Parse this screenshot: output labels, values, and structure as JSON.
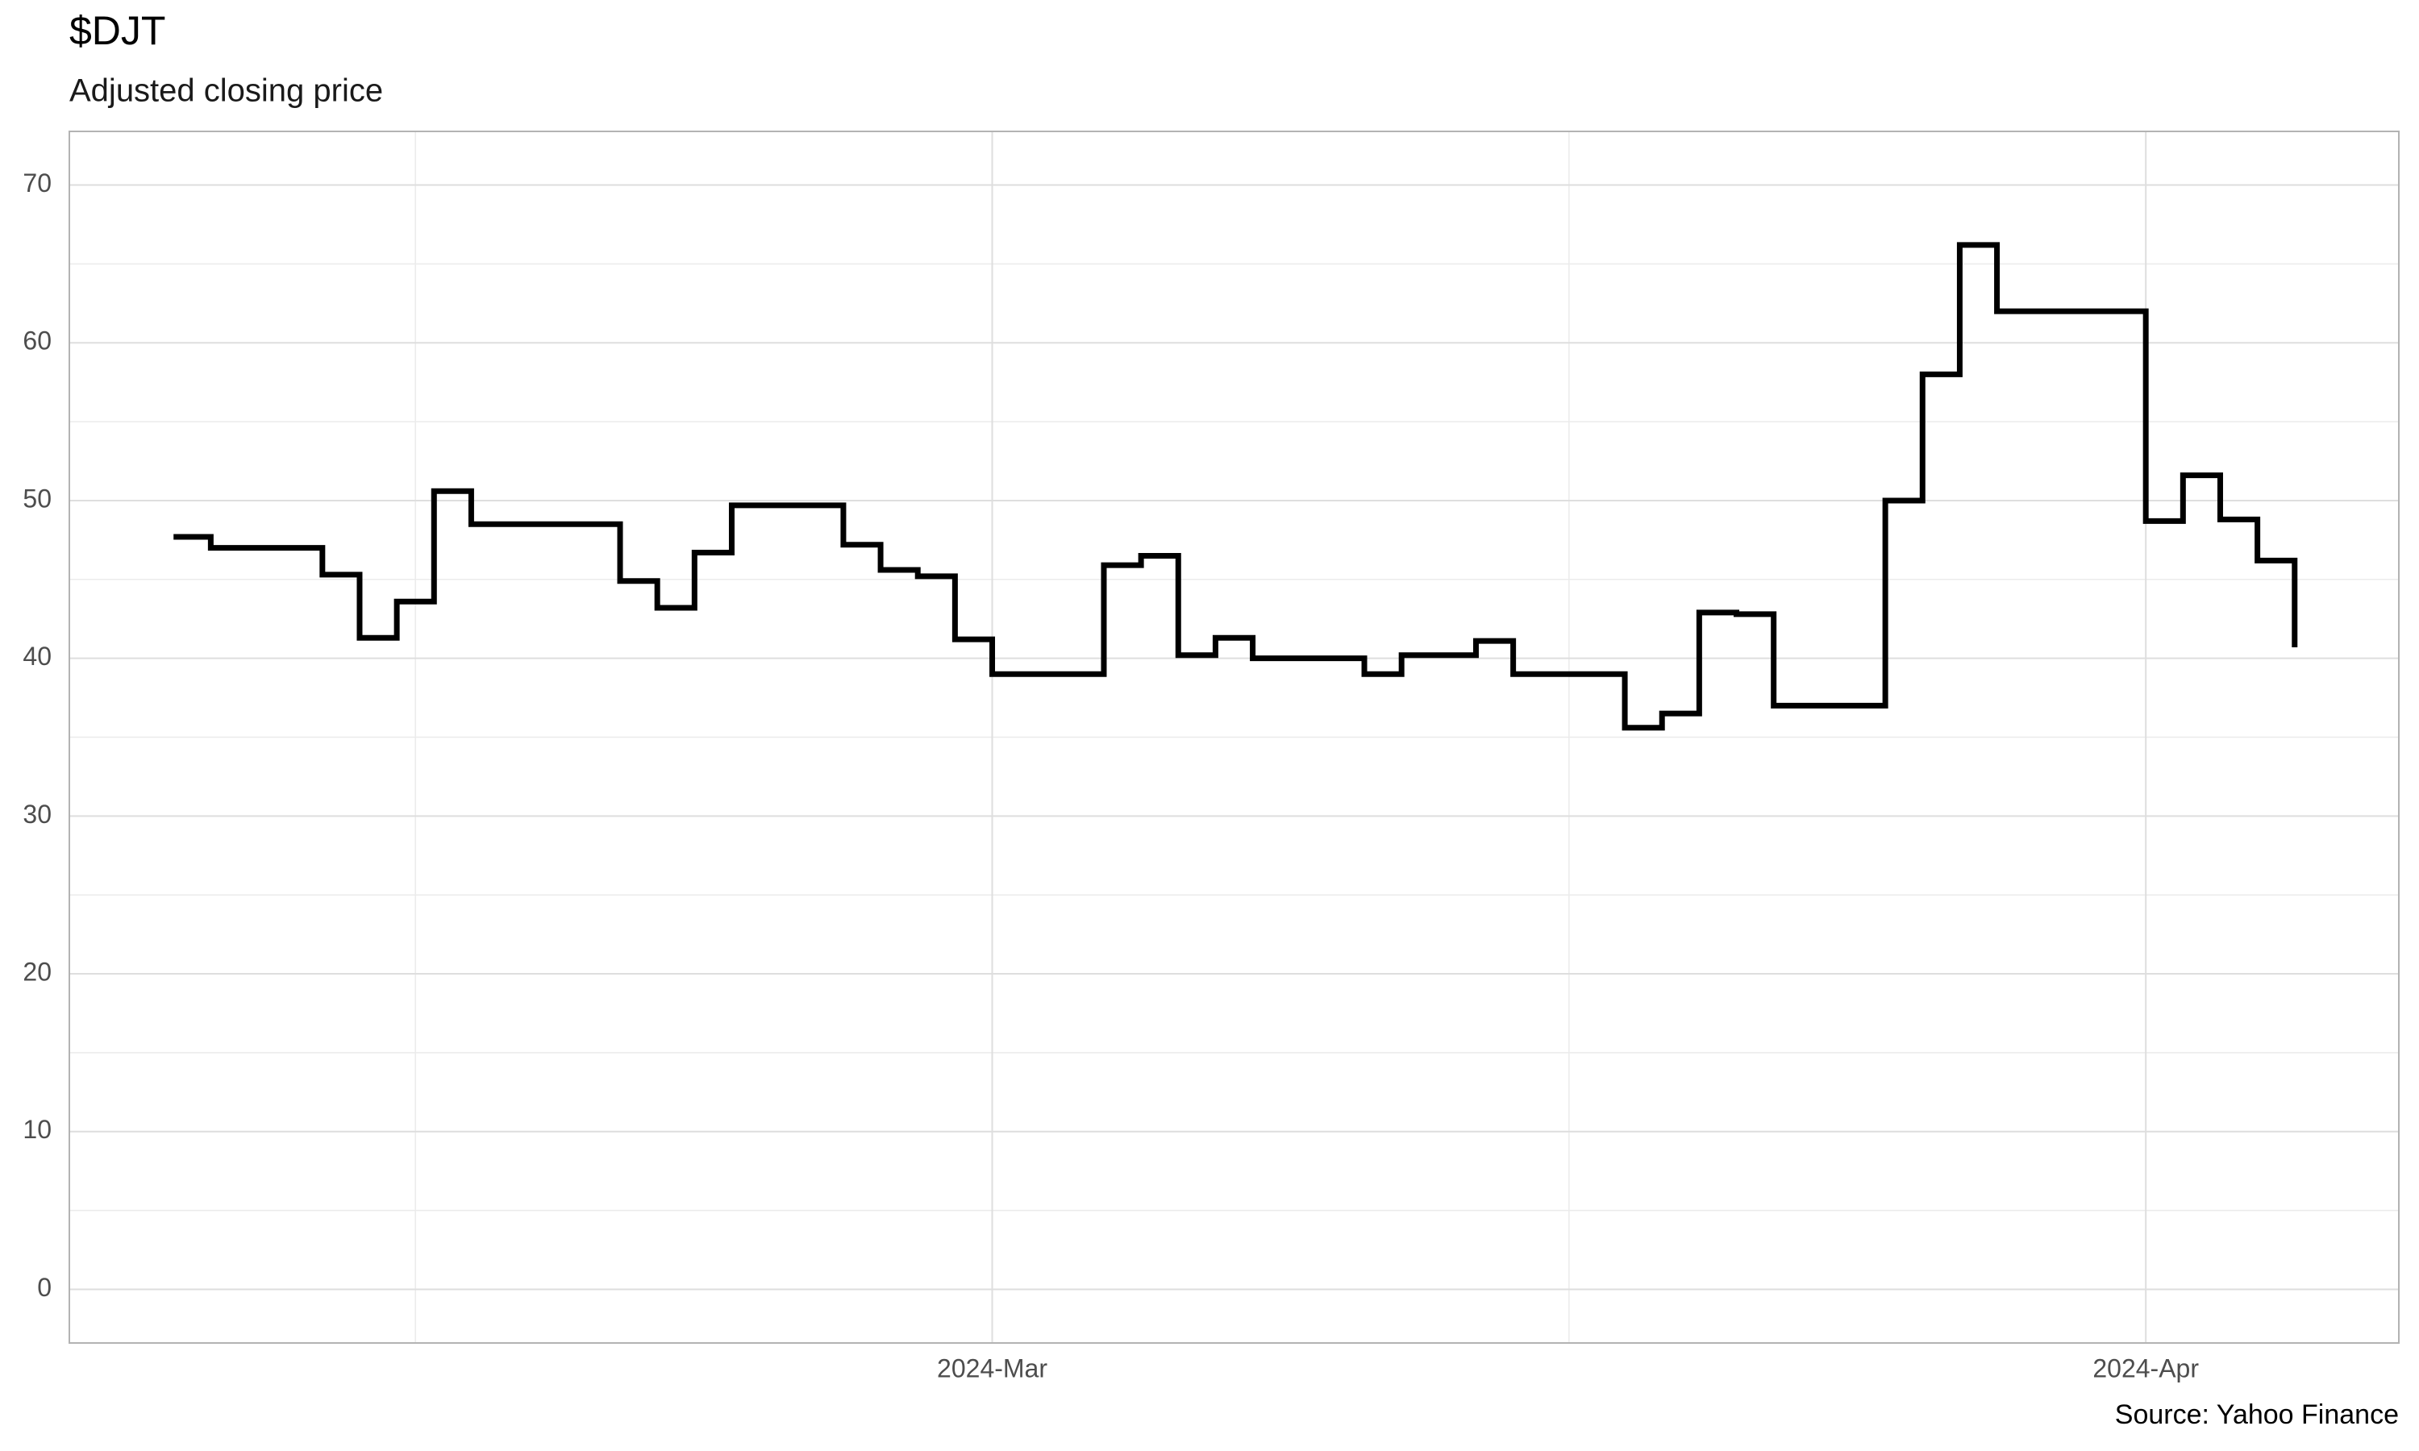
{
  "chart_data": {
    "type": "step",
    "title": "$DJT",
    "subtitle": "Adjusted closing price",
    "caption": "Source: Yahoo Finance",
    "x": [
      39,
      40,
      43,
      44,
      45,
      46,
      47,
      51,
      52,
      53,
      54,
      57,
      58,
      59,
      60,
      61,
      64,
      65,
      66,
      67,
      68,
      71,
      72,
      73,
      74,
      75,
      78,
      79,
      80,
      81,
      82,
      85,
      86,
      87,
      88,
      92,
      93,
      94,
      95,
      96
    ],
    "values": [
      47.7,
      47.0,
      45.3,
      41.3,
      43.6,
      50.6,
      48.5,
      44.9,
      43.2,
      46.7,
      49.7,
      47.2,
      45.6,
      45.2,
      41.2,
      39.0,
      45.9,
      46.5,
      40.2,
      41.3,
      40.0,
      39.0,
      40.2,
      40.2,
      41.1,
      39.0,
      35.6,
      36.5,
      42.9,
      42.8,
      37.0,
      50.0,
      58.0,
      66.2,
      62.0,
      48.7,
      51.6,
      48.8,
      46.2,
      40.7
    ],
    "color": "#000000",
    "xlim": [
      36.2,
      98.8
    ],
    "xticks": [
      {
        "value": 61,
        "label": "2024-Mar"
      },
      {
        "value": 92,
        "label": "2024-Apr"
      }
    ],
    "ylim": [
      -3.4,
      73.4
    ],
    "yticks": [
      0,
      10,
      20,
      30,
      40,
      50,
      60,
      70
    ],
    "grid": true
  }
}
